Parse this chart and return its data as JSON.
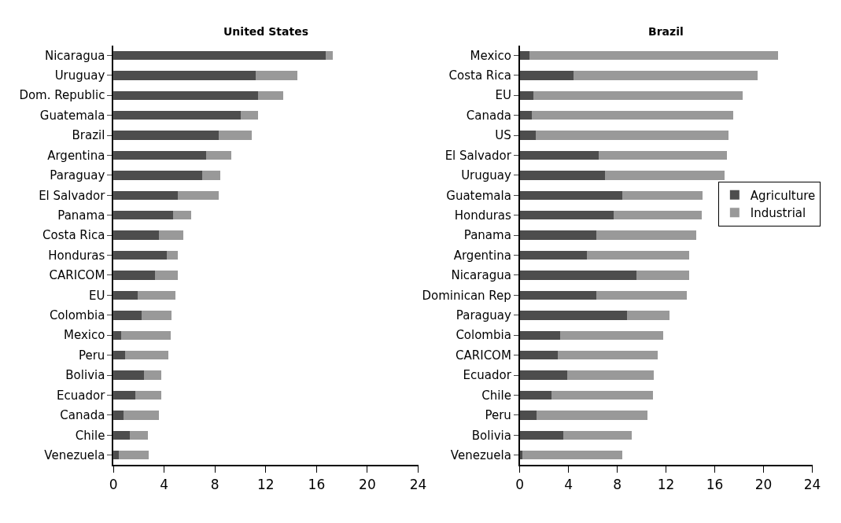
{
  "chart_data": [
    {
      "type": "bar",
      "title": "United States",
      "orientation": "horizontal",
      "stacked": true,
      "legend": false,
      "categories": [
        "Nicaragua",
        "Uruguay",
        "Dom. Republic",
        "Guatemala",
        "Brazil",
        "Argentina",
        "Paraguay",
        "El Salvador",
        "Panama",
        "Costa Rica",
        "Honduras",
        "CARICOM",
        "EU",
        "Colombia",
        "Mexico",
        "Peru",
        "Bolivia",
        "Ecuador",
        "Canada",
        "Chile",
        "Venezuela"
      ],
      "xlim": [
        0,
        24
      ],
      "xticks": [
        0,
        4,
        8,
        12,
        16,
        20,
        24
      ],
      "series": [
        {
          "color": "#4d4d4d",
          "values": [
            16.7,
            11.2,
            11.4,
            10.0,
            8.3,
            7.3,
            7.0,
            5.1,
            4.7,
            3.6,
            4.2,
            3.3,
            1.9,
            2.2,
            0.6,
            0.9,
            2.4,
            1.7,
            0.8,
            1.3,
            0.4
          ]
        },
        {
          "color": "#999999",
          "values": [
            0.6,
            3.3,
            2.0,
            1.4,
            2.6,
            2.0,
            1.4,
            3.2,
            1.4,
            1.9,
            0.9,
            1.8,
            3.0,
            2.4,
            3.9,
            3.4,
            1.4,
            2.1,
            2.8,
            1.4,
            2.4
          ]
        }
      ]
    },
    {
      "type": "bar",
      "title": "Brazil",
      "orientation": "horizontal",
      "stacked": true,
      "legend": "right",
      "categories": [
        "Mexico",
        "Costa Rica",
        "EU",
        "Canada",
        "US",
        "El Salvador",
        "Uruguay",
        "Guatemala",
        "Honduras",
        "Panama",
        "Argentina",
        "Nicaragua",
        "Dominican Rep",
        "Paraguay",
        "Colombia",
        "CARICOM",
        "Ecuador",
        "Chile",
        "Peru",
        "Bolivia",
        "Venezuela"
      ],
      "xlim": [
        0,
        24
      ],
      "xticks": [
        0,
        4,
        8,
        12,
        16,
        20,
        24
      ],
      "series": [
        {
          "name": "Agriculture",
          "color": "#4d4d4d",
          "values": [
            0.8,
            4.4,
            1.1,
            1.0,
            1.3,
            6.5,
            7.0,
            8.4,
            7.7,
            6.3,
            5.5,
            9.6,
            6.3,
            8.8,
            3.3,
            3.1,
            3.9,
            2.6,
            1.4,
            3.6,
            0.2
          ]
        },
        {
          "name": "Industrial",
          "color": "#999999",
          "values": [
            20.4,
            15.1,
            17.2,
            16.5,
            15.8,
            10.5,
            9.8,
            6.6,
            7.2,
            8.2,
            8.4,
            4.3,
            7.4,
            3.5,
            8.5,
            8.2,
            7.1,
            8.3,
            9.1,
            5.6,
            8.2
          ]
        }
      ]
    }
  ]
}
